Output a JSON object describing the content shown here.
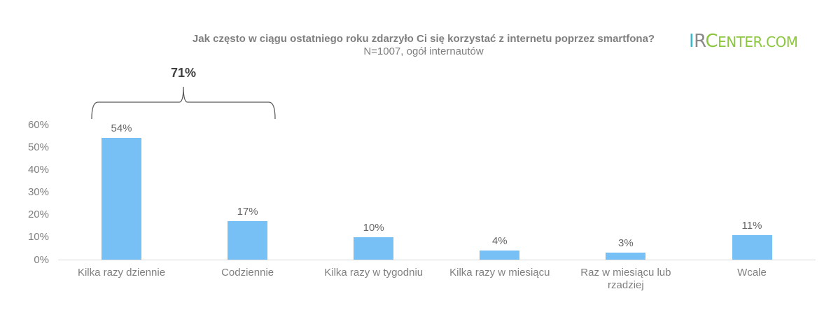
{
  "header": {
    "title": "Jak często w ciągu ostatniego roku zdarzyło Ci się korzystać z internetu poprzez smartfona?",
    "subtitle": "N=1007, ogół internautów"
  },
  "logo": {
    "part_i": "I",
    "part_r": "R",
    "part_c": "C",
    "part_rest": "ENTER.COM",
    "colors": {
      "i": "#3fb6c8",
      "r": "#8a8a8a",
      "center": "#8cc63f"
    }
  },
  "annotation": {
    "bracket_label": "71%",
    "spans": [
      "Kilka razy dziennie",
      "Codziennie"
    ]
  },
  "colors": {
    "bar": "#77c0f5",
    "text": "#7f7f7f",
    "axis": "#d9d9d9",
    "annotation": "#404040"
  },
  "yaxis": {
    "ticks": [
      "60%",
      "50%",
      "40%",
      "30%",
      "20%",
      "10%",
      "0%"
    ]
  },
  "bars": [
    {
      "label": "Kilka razy dziennie",
      "value": 54,
      "value_label": "54%"
    },
    {
      "label": "Codziennie",
      "value": 17,
      "value_label": "17%"
    },
    {
      "label": "Kilka razy w tygodniu",
      "value": 10,
      "value_label": "10%"
    },
    {
      "label": "Kilka razy w miesiącu",
      "value": 4,
      "value_label": "4%"
    },
    {
      "label": "Raz w miesiącu lub rzadziej",
      "value": 3,
      "value_label": "3%"
    },
    {
      "label": "Wcale",
      "value": 11,
      "value_label": "11%"
    }
  ],
  "chart_data": {
    "type": "bar",
    "title": "Jak często w ciągu ostatniego roku zdarzyło Ci się korzystać z internetu poprzez smartfona?",
    "subtitle": "N=1007, ogół internautów",
    "categories": [
      "Kilka razy dziennie",
      "Codziennie",
      "Kilka razy w tygodniu",
      "Kilka razy w miesiącu",
      "Raz w miesiącu lub rzadziej",
      "Wcale"
    ],
    "values": [
      54,
      17,
      10,
      4,
      3,
      11
    ],
    "value_labels": [
      "54%",
      "17%",
      "10%",
      "4%",
      "3%",
      "11%"
    ],
    "xlabel": "",
    "ylabel": "",
    "ylim": [
      0,
      60
    ],
    "yticks": [
      "0%",
      "10%",
      "20%",
      "30%",
      "40%",
      "50%",
      "60%"
    ],
    "grid": false,
    "legend": null,
    "annotations": [
      {
        "type": "bracket",
        "text": "71%",
        "covers": [
          "Kilka razy dziennie",
          "Codziennie"
        ]
      }
    ]
  }
}
